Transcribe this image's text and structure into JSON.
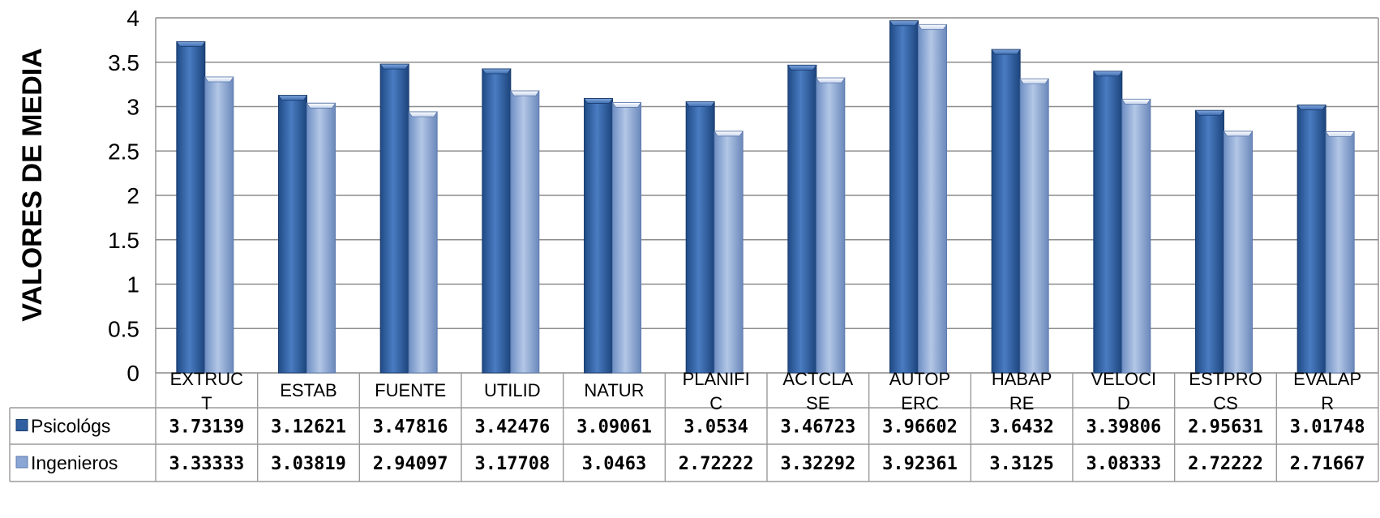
{
  "chart_data": {
    "type": "bar",
    "ylabel": "VALORES DE MEDIA",
    "ylim": [
      0,
      4
    ],
    "yticks": [
      "0",
      "0.5",
      "1",
      "1.5",
      "2",
      "2.5",
      "3",
      "3.5",
      "4"
    ],
    "grid": true,
    "categories": [
      [
        "EXTRUC",
        "T"
      ],
      [
        "ESTAB"
      ],
      [
        "FUENTE"
      ],
      [
        "UTILID"
      ],
      [
        "NATUR"
      ],
      [
        "PLANIFI",
        "C"
      ],
      [
        "ACTCLA",
        "SE"
      ],
      [
        "AUTOP",
        "ERC"
      ],
      [
        "HABAP",
        "RE"
      ],
      [
        "VELOCI",
        "D"
      ],
      [
        "ESTPRO",
        "CS"
      ],
      [
        "EVALAP",
        "R"
      ]
    ],
    "series": [
      {
        "name": "Psicológs",
        "values": [
          3.73139,
          3.12621,
          3.47816,
          3.42476,
          3.09061,
          3.0534,
          3.46723,
          3.96602,
          3.6432,
          3.39806,
          2.95631,
          3.01748
        ],
        "labels": [
          "3.73139",
          "3.12621",
          "3.47816",
          "3.42476",
          "3.09061",
          "3.0534",
          "3.46723",
          "3.96602",
          "3.6432",
          "3.39806",
          "2.95631",
          "3.01748"
        ],
        "color": "#2f5fa0"
      },
      {
        "name": "Ingenieros",
        "values": [
          3.33333,
          3.03819,
          2.94097,
          3.17708,
          3.0463,
          2.72222,
          3.32292,
          3.92361,
          3.3125,
          3.08333,
          2.72222,
          2.71667
        ],
        "labels": [
          "3.33333",
          "3.03819",
          "2.94097",
          "3.17708",
          "3.0463",
          "2.72222",
          "3.32292",
          "3.92361",
          "3.3125",
          "3.08333",
          "2.72222",
          "2.71667"
        ],
        "color": "#8aa6d4"
      }
    ],
    "legend": "data-table"
  }
}
